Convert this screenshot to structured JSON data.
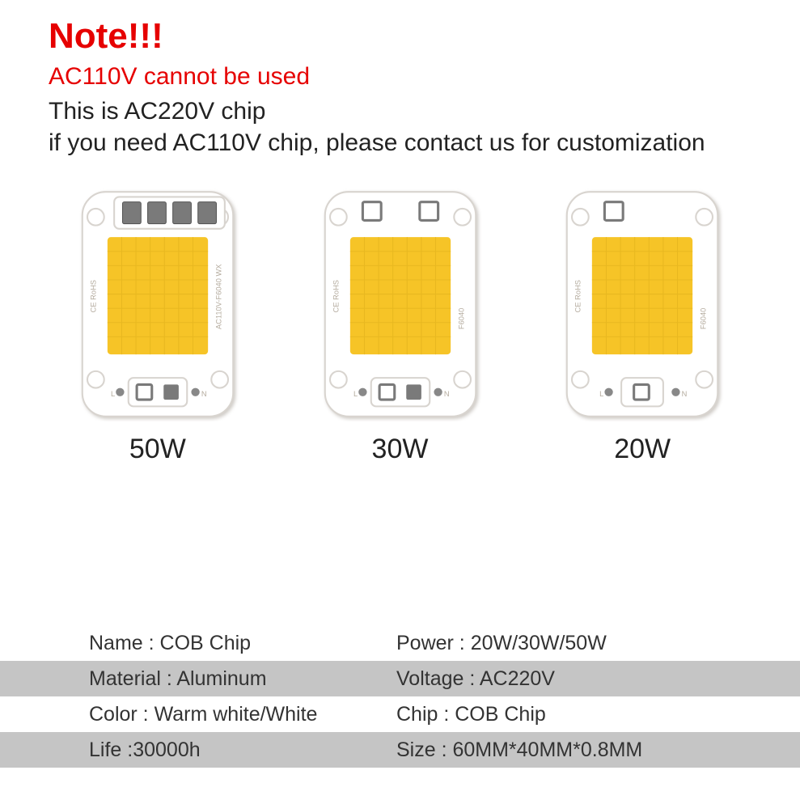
{
  "colors": {
    "red": "#e60000",
    "text": "#222222",
    "shadeRow": "#c5c5c5",
    "chipBody": "#ffffff",
    "chipOutline": "#d8d4cf",
    "chipShadow": "#cfcbc6",
    "ledYellow": "#f6c427",
    "ledYellowDark": "#e8b820",
    "contactGray": "#7a7a7a",
    "markGray": "#b5ac9f"
  },
  "header": {
    "title": "Note!!!",
    "warning": "AC110V cannot be used",
    "info1": "This is AC220V chip",
    "info2": "if you need AC110V chip, please contact us for customization"
  },
  "chips": [
    {
      "label": "50W",
      "topContacts": 4,
      "bottomContacts": 2,
      "sideTextLeft": "CE RoHS",
      "sideTextRight": "AC110V-F6040 WX"
    },
    {
      "label": "30W",
      "topContacts": 2,
      "bottomContacts": 2,
      "sideTextLeft": "CE RoHS",
      "sideTextRight": "F6040"
    },
    {
      "label": "20W",
      "topContacts": 1,
      "bottomContacts": 1,
      "sideTextLeft": "CE RoHS",
      "sideTextRight": "F6040"
    }
  ],
  "specs": {
    "rows": [
      {
        "shaded": false,
        "left": "Name : COB Chip",
        "right": "Power : 20W/30W/50W"
      },
      {
        "shaded": true,
        "left": "Material : Aluminum",
        "right": "Voltage : AC220V"
      },
      {
        "shaded": false,
        "left": "Color : Warm white/White",
        "right": "Chip : COB Chip"
      },
      {
        "shaded": true,
        "left": "Life :30000h",
        "right": "Size : 60MM*40MM*0.8MM"
      }
    ]
  }
}
